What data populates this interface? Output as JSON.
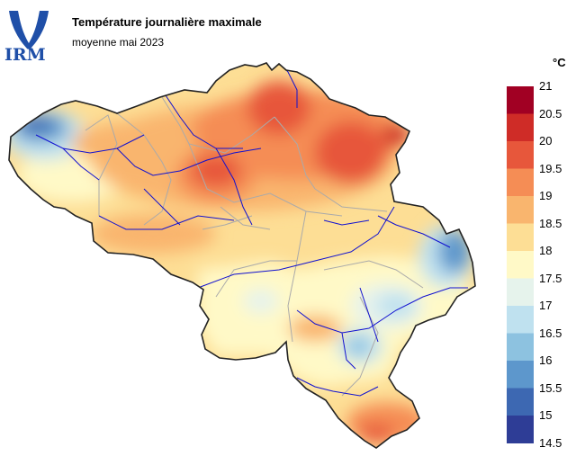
{
  "header": {
    "title": "Température journalière maximale",
    "subtitle": "moyenne mai 2023"
  },
  "logo": {
    "text": "IRM",
    "color": "#1f4fa8"
  },
  "legend": {
    "unit": "°C",
    "labels": [
      "21",
      "20.5",
      "20",
      "19.5",
      "19",
      "18.5",
      "18",
      "17.5",
      "17",
      "16.5",
      "16",
      "15.5",
      "15",
      "14.5"
    ],
    "colors": [
      "#a10023",
      "#cf2c27",
      "#e7573b",
      "#f58d55",
      "#f9b56e",
      "#fdde95",
      "#fff9c7",
      "#e6f3ec",
      "#bfe1ef",
      "#8dc2e0",
      "#5d97cc",
      "#3d68b2",
      "#2e3d96"
    ]
  },
  "map": {
    "region": "Belgium",
    "border_color": "#222222",
    "province_color": "#aaaaaa",
    "river_color": "#1010d0"
  }
}
